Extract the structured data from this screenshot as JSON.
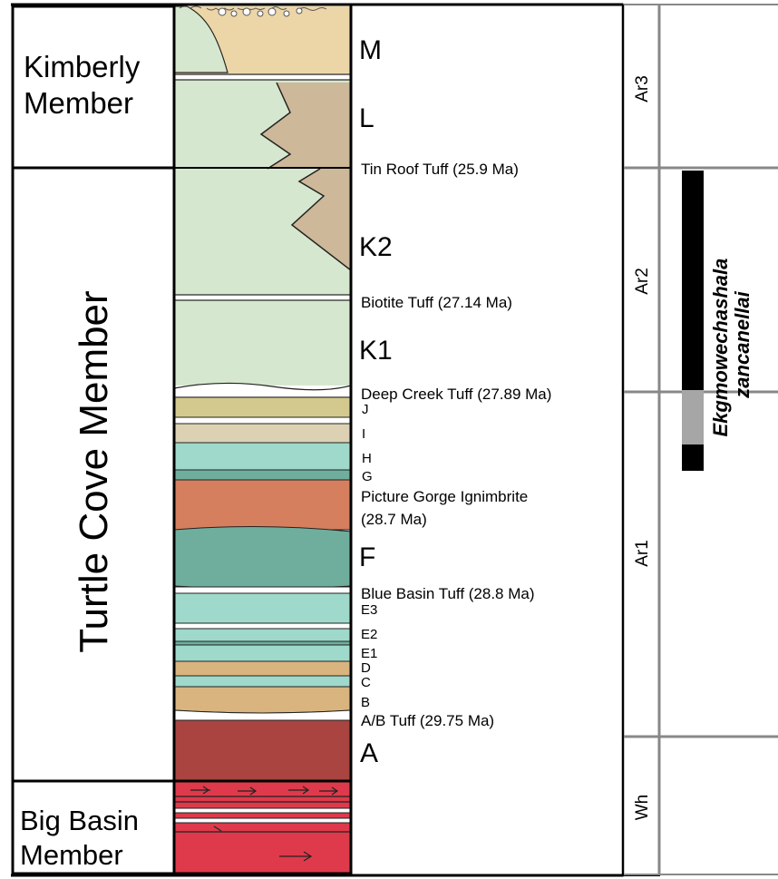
{
  "members": {
    "kimberly": [
      "Kimberly",
      "Member"
    ],
    "turtle_cove": "Turtle Cove Member",
    "big_basin": [
      "Big Basin",
      "Member"
    ]
  },
  "units": {
    "M": "M",
    "L": "L",
    "K2": "K2",
    "K1": "K1",
    "J": "J",
    "I": "I",
    "H": "H",
    "G": "G",
    "F": "F",
    "E3": "E3",
    "E2": "E2",
    "E1": "E1",
    "D": "D",
    "C": "C",
    "B": "B",
    "A": "A"
  },
  "marker_beds": {
    "tin_roof": "Tin Roof Tuff (25.9 Ma)",
    "biotite": "Biotite Tuff (27.14 Ma)",
    "deep_creek": "Deep Creek Tuff (27.89 Ma)",
    "picture_gorge": [
      "Picture Gorge Ignimbrite",
      "(28.7 Ma)"
    ],
    "blue_basin": "Blue Basin Tuff (28.8 Ma)",
    "ab_tuff": "A/B Tuff (29.75 Ma)"
  },
  "stages": {
    "ar3": "Ar3",
    "ar2": "Ar2",
    "ar1": "Ar1",
    "wh": "Wh"
  },
  "taxon": [
    "Ekgmowechashala",
    "zancanellai"
  ],
  "colors": {
    "green_claystone": "#d6e7cf",
    "tan_unit_m": "#ecd6a8",
    "brown_tongue": "#cdb899",
    "olive": "#d3c98f",
    "beige": "#dcd1b3",
    "aqua": "#9fd9cb",
    "teal": "#6fae9d",
    "orange_ignimbrite": "#d57f5f",
    "tan": "#d9b47e",
    "maroon": "#a94440",
    "red_basal": "#de3a4b",
    "range_black": "#000000",
    "range_gray": "#a6a6a6"
  }
}
